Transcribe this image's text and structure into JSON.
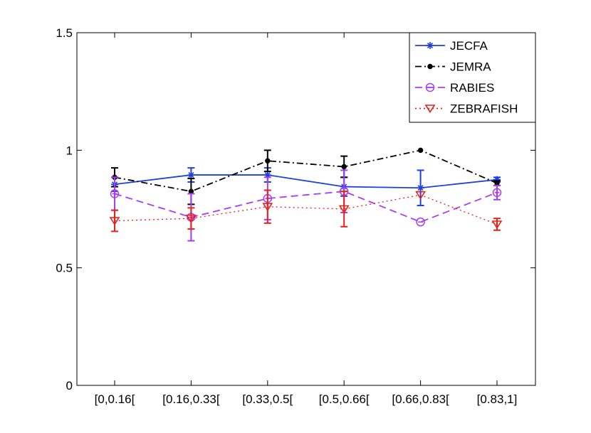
{
  "chart_data": {
    "type": "line",
    "title": "",
    "xlabel": "",
    "ylabel": "",
    "categories": [
      "[0,0.16[",
      "[0.16,0.33[",
      "[0.33,0.5[",
      "[0.5,0.66[",
      "[0.66,0.83[",
      "[0.83,1]"
    ],
    "ylim": [
      0,
      1.5
    ],
    "yticks": [
      0,
      0.5,
      1,
      1.5
    ],
    "ytick_labels": [
      "0",
      "0.5",
      "1",
      "1.5"
    ],
    "legend_position": "top-right",
    "series": [
      {
        "name": "JECFA",
        "color": "#1f3fe0",
        "dash": "",
        "marker": "asterisk",
        "values": [
          0.855,
          0.895,
          0.895,
          0.845,
          0.84,
          0.875
        ],
        "err_low": [
          0.03,
          0.03,
          0.03,
          0.04,
          0.075,
          0.01
        ],
        "err_high": [
          0.03,
          0.03,
          0.03,
          0.04,
          0.075,
          0.01
        ]
      },
      {
        "name": "JEMRA",
        "color": "#000000",
        "dash": "9,4,2,4",
        "marker": "dot",
        "values": [
          0.885,
          0.825,
          0.955,
          0.93,
          1.0,
          0.86
        ],
        "err_low": [
          0.04,
          0.055,
          0.045,
          0.045,
          0.0,
          0.01
        ],
        "err_high": [
          0.04,
          0.055,
          0.045,
          0.045,
          0.0,
          0.01
        ]
      },
      {
        "name": "RABIES",
        "color": "#a83cf0",
        "dash": "10,6",
        "marker": "circle-minus",
        "values": [
          0.815,
          0.715,
          0.795,
          0.825,
          0.695,
          0.82
        ],
        "err_low": [
          0.07,
          0.1,
          0.09,
          0.09,
          0.0,
          0.03
        ],
        "err_high": [
          0.07,
          0.1,
          0.09,
          0.09,
          0.0,
          0.03
        ]
      },
      {
        "name": "ZEBRAFISH",
        "color": "#e8201a",
        "dash": "2,4",
        "marker": "triangle-down",
        "values": [
          0.7,
          0.71,
          0.76,
          0.75,
          0.81,
          0.685
        ],
        "err_low": [
          0.045,
          0.045,
          0.07,
          0.075,
          0.0,
          0.025
        ],
        "err_high": [
          0.045,
          0.045,
          0.07,
          0.075,
          0.0,
          0.025
        ]
      }
    ]
  }
}
